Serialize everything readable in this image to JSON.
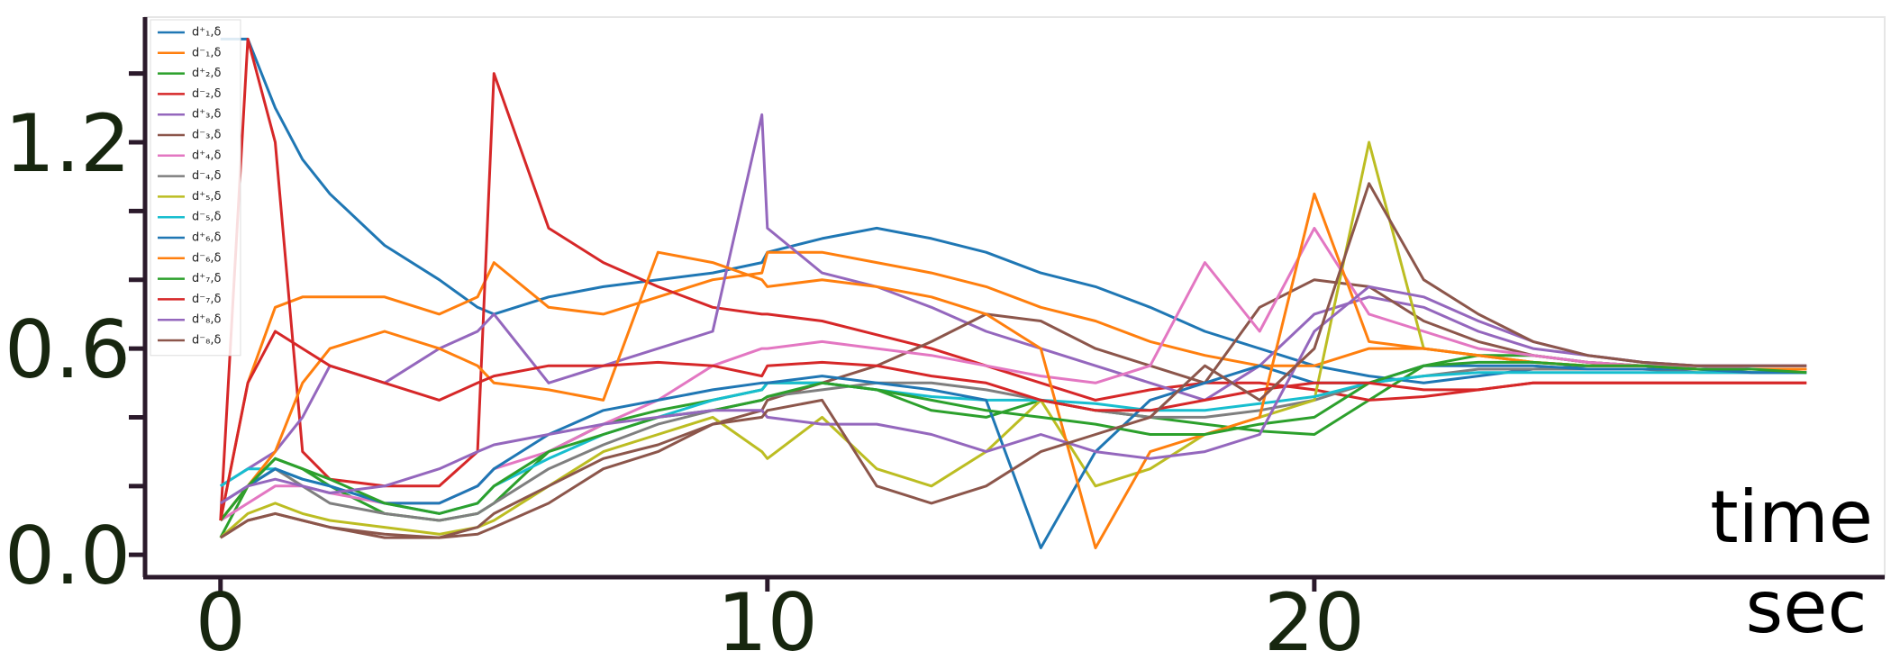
{
  "chart_data": {
    "type": "line",
    "x": [
      0,
      0.5,
      1,
      1.5,
      2,
      3,
      4,
      4.7,
      5,
      6,
      7,
      8,
      9,
      9.9,
      10,
      11,
      12,
      13,
      14,
      15,
      16,
      17,
      18,
      19,
      20,
      21,
      22,
      23,
      24,
      25,
      26,
      27,
      28,
      29
    ],
    "series": [
      {
        "name": "d⁺₁,δ",
        "color": "#1f77b4",
        "values": [
          1.5,
          1.5,
          1.3,
          1.15,
          1.05,
          0.9,
          0.8,
          0.72,
          0.7,
          0.75,
          0.78,
          0.8,
          0.82,
          0.85,
          0.88,
          0.92,
          0.95,
          0.92,
          0.88,
          0.82,
          0.78,
          0.72,
          0.65,
          0.6,
          0.55,
          0.52,
          0.5,
          0.52,
          0.54,
          0.55,
          0.55,
          0.55,
          0.54,
          0.54
        ]
      },
      {
        "name": "d⁻₁,δ",
        "color": "#ff7f0e",
        "values": [
          0.1,
          0.5,
          0.72,
          0.75,
          0.75,
          0.75,
          0.7,
          0.75,
          0.85,
          0.72,
          0.7,
          0.75,
          0.8,
          0.82,
          0.88,
          0.88,
          0.85,
          0.82,
          0.78,
          0.72,
          0.68,
          0.62,
          0.58,
          0.55,
          0.55,
          0.6,
          0.6,
          0.58,
          0.56,
          0.55,
          0.55,
          0.54,
          0.54,
          0.54
        ]
      },
      {
        "name": "d⁺₂,δ",
        "color": "#2ca02c",
        "values": [
          0.05,
          0.2,
          0.28,
          0.25,
          0.2,
          0.12,
          0.1,
          0.12,
          0.15,
          0.3,
          0.38,
          0.42,
          0.45,
          0.48,
          0.5,
          0.5,
          0.48,
          0.42,
          0.4,
          0.45,
          0.42,
          0.4,
          0.38,
          0.36,
          0.35,
          0.45,
          0.55,
          0.58,
          0.58,
          0.56,
          0.55,
          0.54,
          0.53,
          0.53
        ]
      },
      {
        "name": "d⁻₂,δ",
        "color": "#d62728",
        "values": [
          0.1,
          1.5,
          1.2,
          0.3,
          0.22,
          0.2,
          0.2,
          0.3,
          1.4,
          0.95,
          0.85,
          0.78,
          0.72,
          0.7,
          0.7,
          0.68,
          0.64,
          0.6,
          0.55,
          0.5,
          0.45,
          0.48,
          0.5,
          0.5,
          0.48,
          0.45,
          0.46,
          0.48,
          0.5,
          0.5,
          0.5,
          0.5,
          0.5,
          0.5
        ]
      },
      {
        "name": "d⁺₃,δ",
        "color": "#9467bd",
        "values": [
          0.2,
          0.25,
          0.3,
          0.4,
          0.55,
          0.5,
          0.6,
          0.65,
          0.7,
          0.5,
          0.55,
          0.6,
          0.65,
          1.28,
          0.95,
          0.82,
          0.78,
          0.72,
          0.65,
          0.6,
          0.55,
          0.5,
          0.45,
          0.55,
          0.7,
          0.75,
          0.72,
          0.65,
          0.6,
          0.58,
          0.56,
          0.55,
          0.55,
          0.55
        ]
      },
      {
        "name": "d⁻₃,δ",
        "color": "#8c564b",
        "values": [
          0.05,
          0.1,
          0.12,
          0.1,
          0.08,
          0.05,
          0.05,
          0.06,
          0.08,
          0.15,
          0.25,
          0.3,
          0.38,
          0.42,
          0.45,
          0.5,
          0.55,
          0.62,
          0.7,
          0.68,
          0.6,
          0.55,
          0.5,
          0.72,
          0.8,
          0.78,
          0.68,
          0.62,
          0.58,
          0.56,
          0.55,
          0.54,
          0.54,
          0.54
        ]
      },
      {
        "name": "d⁺₄,δ",
        "color": "#e377c2",
        "values": [
          0.1,
          0.15,
          0.2,
          0.2,
          0.18,
          0.15,
          0.15,
          0.2,
          0.25,
          0.3,
          0.38,
          0.45,
          0.55,
          0.6,
          0.6,
          0.62,
          0.6,
          0.58,
          0.55,
          0.52,
          0.5,
          0.55,
          0.85,
          0.65,
          0.95,
          0.7,
          0.65,
          0.6,
          0.58,
          0.56,
          0.55,
          0.55,
          0.54,
          0.54
        ]
      },
      {
        "name": "d⁻₄,δ",
        "color": "#7f7f7f",
        "values": [
          0.1,
          0.2,
          0.25,
          0.2,
          0.15,
          0.12,
          0.1,
          0.12,
          0.15,
          0.25,
          0.32,
          0.38,
          0.42,
          0.45,
          0.46,
          0.48,
          0.5,
          0.5,
          0.48,
          0.45,
          0.42,
          0.4,
          0.4,
          0.42,
          0.45,
          0.5,
          0.52,
          0.54,
          0.54,
          0.54,
          0.54,
          0.53,
          0.53,
          0.53
        ]
      },
      {
        "name": "d⁺₅,δ",
        "color": "#bcbd22",
        "values": [
          0.05,
          0.12,
          0.15,
          0.12,
          0.1,
          0.08,
          0.06,
          0.08,
          0.1,
          0.2,
          0.3,
          0.35,
          0.4,
          0.3,
          0.28,
          0.4,
          0.25,
          0.2,
          0.3,
          0.45,
          0.2,
          0.25,
          0.35,
          0.4,
          0.45,
          1.2,
          0.6,
          0.58,
          0.56,
          0.55,
          0.55,
          0.54,
          0.54,
          0.54
        ]
      },
      {
        "name": "d⁻₅,δ",
        "color": "#17becf",
        "values": [
          0.2,
          0.25,
          0.25,
          0.22,
          0.2,
          0.15,
          0.12,
          0.15,
          0.2,
          0.28,
          0.35,
          0.4,
          0.45,
          0.48,
          0.5,
          0.5,
          0.48,
          0.46,
          0.45,
          0.45,
          0.44,
          0.42,
          0.42,
          0.44,
          0.46,
          0.5,
          0.52,
          0.53,
          0.53,
          0.53,
          0.53,
          0.53,
          0.53,
          0.53
        ]
      },
      {
        "name": "d⁺₆,δ",
        "color": "#1f77b4",
        "values": [
          0.15,
          0.2,
          0.25,
          0.22,
          0.2,
          0.15,
          0.15,
          0.2,
          0.25,
          0.35,
          0.42,
          0.45,
          0.48,
          0.5,
          0.5,
          0.52,
          0.5,
          0.48,
          0.45,
          0.02,
          0.3,
          0.45,
          0.5,
          0.55,
          0.5,
          0.5,
          0.55,
          0.55,
          0.55,
          0.54,
          0.54,
          0.54,
          0.53,
          0.53
        ]
      },
      {
        "name": "d⁻₆,δ",
        "color": "#ff7f0e",
        "values": [
          0.1,
          0.2,
          0.3,
          0.5,
          0.6,
          0.65,
          0.6,
          0.55,
          0.5,
          0.48,
          0.45,
          0.88,
          0.85,
          0.8,
          0.78,
          0.8,
          0.78,
          0.75,
          0.7,
          0.6,
          0.02,
          0.3,
          0.35,
          0.4,
          1.05,
          0.62,
          0.6,
          0.58,
          0.56,
          0.55,
          0.55,
          0.54,
          0.54,
          0.54
        ]
      },
      {
        "name": "d⁺₇,δ",
        "color": "#2ca02c",
        "values": [
          0.1,
          0.2,
          0.28,
          0.25,
          0.22,
          0.15,
          0.12,
          0.15,
          0.2,
          0.3,
          0.35,
          0.4,
          0.42,
          0.45,
          0.46,
          0.5,
          0.48,
          0.45,
          0.42,
          0.4,
          0.38,
          0.35,
          0.35,
          0.38,
          0.4,
          0.5,
          0.55,
          0.56,
          0.56,
          0.55,
          0.55,
          0.54,
          0.54,
          0.53
        ]
      },
      {
        "name": "d⁻₇,δ",
        "color": "#d62728",
        "values": [
          0.1,
          0.5,
          0.65,
          0.6,
          0.55,
          0.5,
          0.45,
          0.5,
          0.52,
          0.55,
          0.55,
          0.56,
          0.55,
          0.52,
          0.55,
          0.56,
          0.55,
          0.52,
          0.5,
          0.45,
          0.42,
          0.42,
          0.45,
          0.48,
          0.5,
          0.5,
          0.48,
          0.48,
          0.5,
          0.5,
          0.5,
          0.5,
          0.5,
          0.5
        ]
      },
      {
        "name": "d⁺₈,δ",
        "color": "#9467bd",
        "values": [
          0.15,
          0.2,
          0.22,
          0.2,
          0.18,
          0.2,
          0.25,
          0.3,
          0.32,
          0.35,
          0.38,
          0.4,
          0.42,
          0.42,
          0.4,
          0.38,
          0.38,
          0.35,
          0.3,
          0.35,
          0.3,
          0.28,
          0.3,
          0.35,
          0.65,
          0.78,
          0.75,
          0.68,
          0.62,
          0.58,
          0.56,
          0.55,
          0.55,
          0.55
        ]
      },
      {
        "name": "d⁻₈,δ",
        "color": "#8c564b",
        "values": [
          0.05,
          0.1,
          0.12,
          0.1,
          0.08,
          0.06,
          0.05,
          0.08,
          0.12,
          0.2,
          0.28,
          0.32,
          0.38,
          0.4,
          0.42,
          0.45,
          0.2,
          0.15,
          0.2,
          0.3,
          0.35,
          0.4,
          0.55,
          0.45,
          0.6,
          1.08,
          0.8,
          0.7,
          0.62,
          0.58,
          0.56,
          0.55,
          0.55,
          0.55
        ]
      }
    ],
    "xlim": [
      -1.38,
      30.43
    ],
    "xticks": [
      0,
      10,
      20
    ],
    "ylim": [
      -0.065,
      1.564
    ],
    "yticks": [
      {
        "value": 0,
        "label": "0.0"
      },
      0.6,
      1.2
    ],
    "yminor_ticks": [
      0.2,
      0.4,
      0.8,
      1.0,
      1.4
    ],
    "xlabel": "time",
    "xunit": "sec",
    "legend": "upper left"
  }
}
